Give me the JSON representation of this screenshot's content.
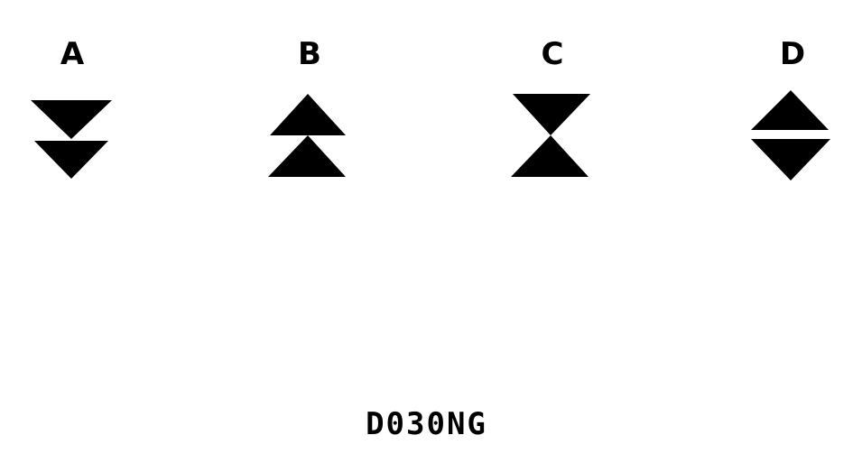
{
  "symbols": [
    {
      "label": "A",
      "icon": "double-down-triangle-icon"
    },
    {
      "label": "B",
      "icon": "double-up-triangle-icon"
    },
    {
      "label": "C",
      "icon": "hourglass-triangle-icon"
    },
    {
      "label": "D",
      "icon": "separated-up-down-triangle-icon"
    }
  ],
  "figure_code": "D030NG",
  "colors": {
    "foreground": "#000000",
    "background": "#ffffff"
  }
}
